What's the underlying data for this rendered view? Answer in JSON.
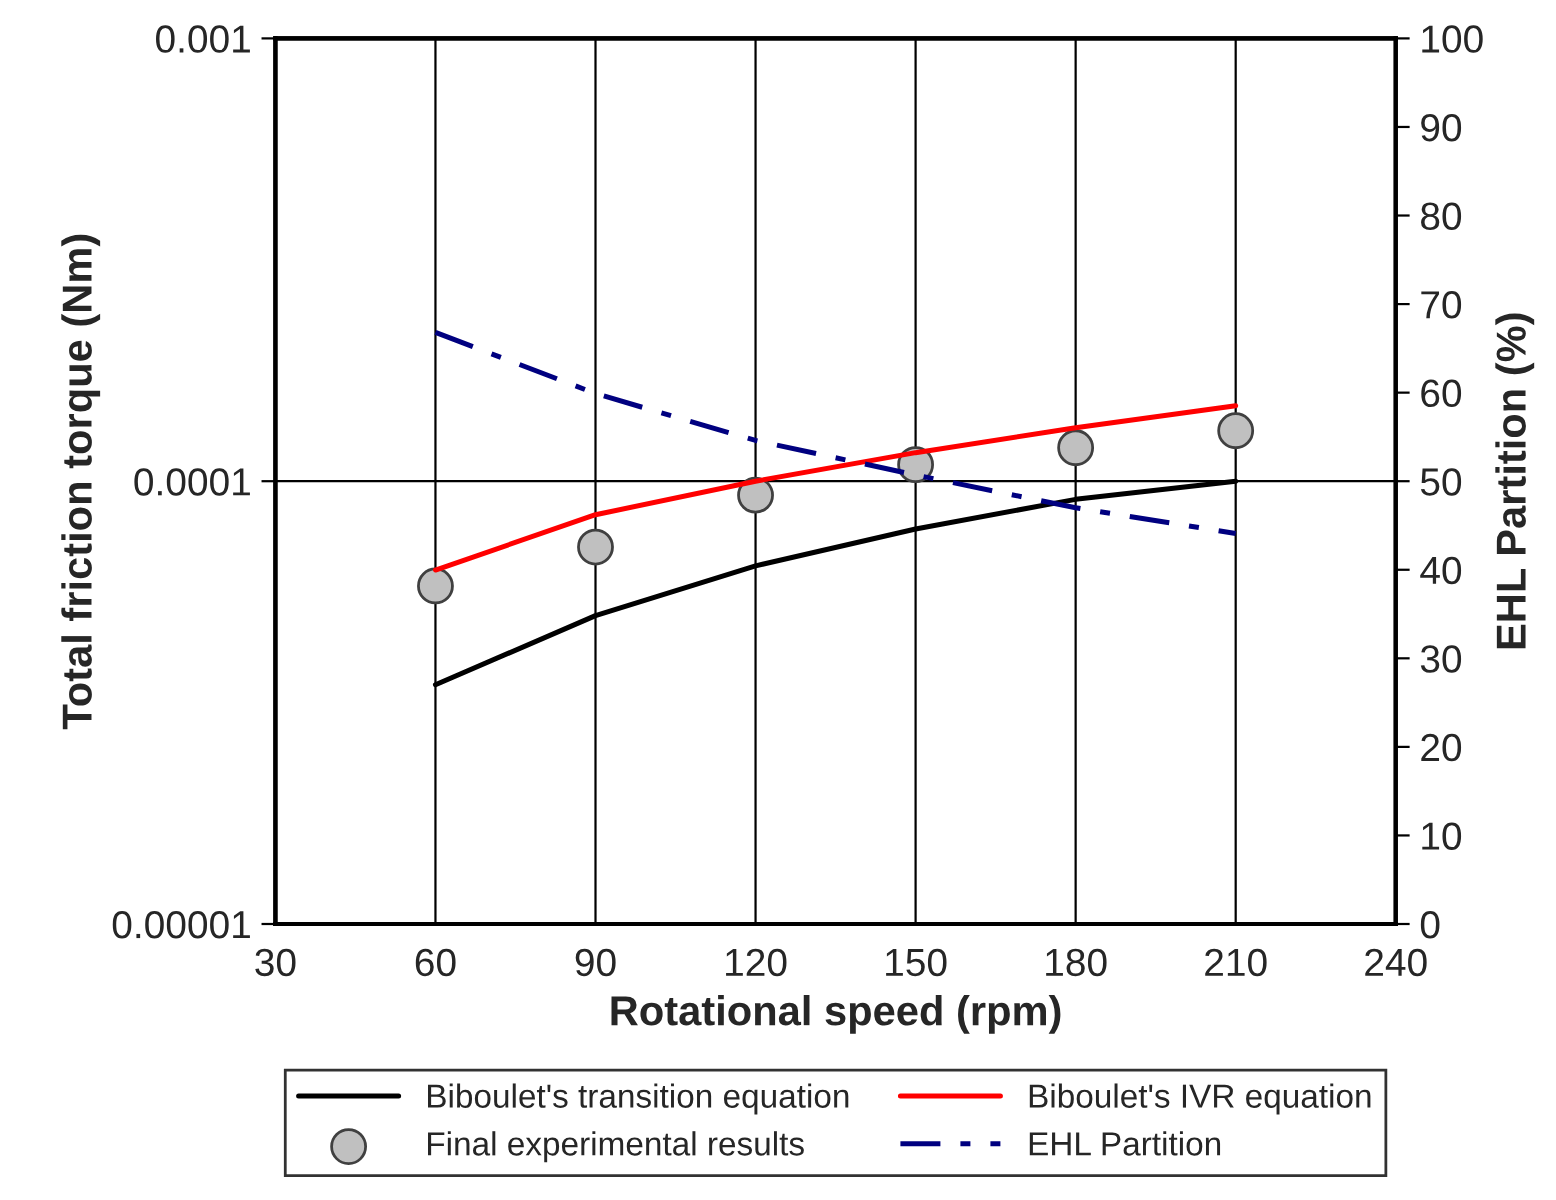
{
  "chart_data": {
    "type": "line",
    "xlabel": "Rotational speed (rpm)",
    "ylabel": "Total friction torque (Nm)",
    "y2label": "EHL Partition (%)",
    "x": [
      60,
      90,
      120,
      150,
      180,
      210
    ],
    "series": [
      {
        "name": "Biboulet's transition equation",
        "color": "#000000",
        "line_style": "solid",
        "values": [
          3.47e-05,
          4.97e-05,
          6.44e-05,
          7.8e-05,
          9.1e-05,
          0.0001
        ]
      },
      {
        "name": "Final experimental results",
        "color": "#c0c0c0",
        "type": "scatter",
        "marker": "circle",
        "values": [
          5.8e-05,
          7.1e-05,
          9.3e-05,
          0.000109,
          0.000119,
          0.00013
        ]
      },
      {
        "name": "Biboulet's IVR equation",
        "color": "#ff0000",
        "type": "line",
        "line_style": "solid",
        "values": [
          6.3e-05,
          8.4e-05,
          0.0001,
          0.000116,
          0.000132,
          0.000148
        ]
      },
      {
        "name": "EHL Partition",
        "color": "#000080",
        "type": "line",
        "line_style": "dashdot",
        "axis": "y2",
        "values": [
          66.8,
          59.9,
          54.6,
          50.7,
          47.0,
          44.1
        ]
      }
    ],
    "xlim": [
      30,
      240
    ],
    "xticks": [
      30,
      60,
      90,
      120,
      150,
      180,
      210,
      240
    ],
    "log": "y",
    "ylim": [
      1e-05,
      0.001
    ],
    "yticks": [
      {
        "value": 1e-05,
        "label": "0.00001"
      },
      {
        "value": 0.0001,
        "label": "0.0001"
      },
      {
        "value": 0.001,
        "label": "0.001"
      }
    ],
    "y2lim": [
      0,
      100
    ],
    "y2ticks": [
      0,
      10,
      20,
      30,
      40,
      50,
      60,
      70,
      80,
      90,
      100
    ],
    "grid": true,
    "legend": "bottom"
  }
}
